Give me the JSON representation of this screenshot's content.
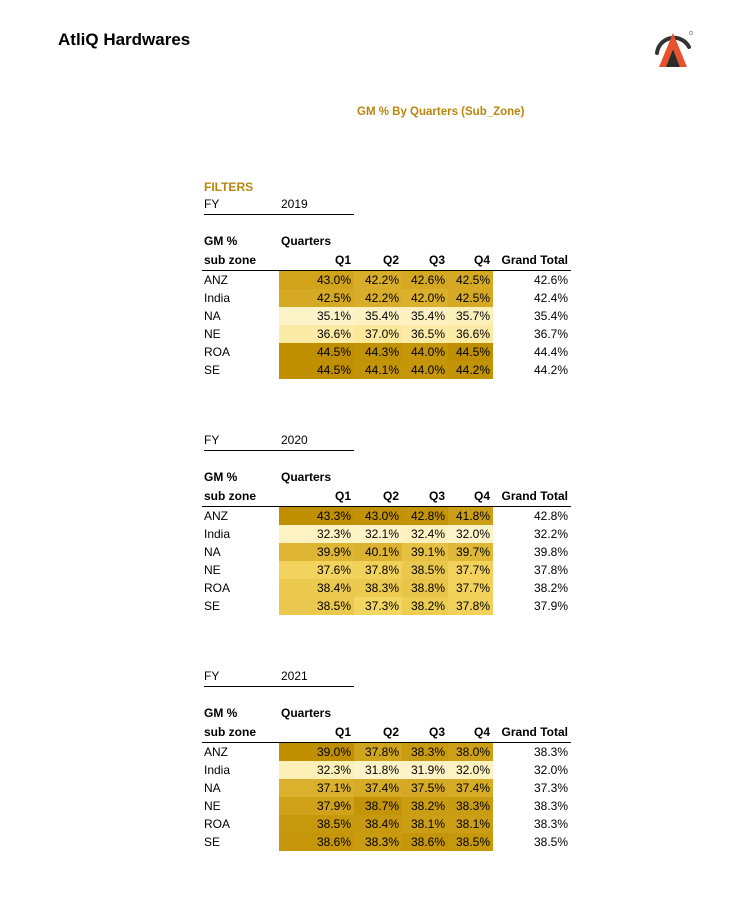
{
  "brand": "AtliQ Hardwares",
  "report_title": "GM % By Quarters (Sub_Zone)",
  "filters_label": "FILTERS",
  "colors": {
    "accent": "#b8860b",
    "heat_low": "#fdf3c8",
    "heat_high": "#bf8f00"
  },
  "icons": {
    "logo": "atliq-logo-icon"
  },
  "headers": {
    "gm": "GM %",
    "quarters": "Quarters",
    "sub_zone": "sub zone",
    "q1": "Q1",
    "q2": "Q2",
    "q3": "Q3",
    "q4": "Q4",
    "grand_total": "Grand Total",
    "fy": "FY"
  },
  "tables": [
    {
      "year": "2019",
      "rows": [
        {
          "name": "ANZ",
          "q": [
            "43.0%",
            "42.2%",
            "42.6%",
            "42.5%"
          ],
          "gt": "42.6%"
        },
        {
          "name": "India",
          "q": [
            "42.5%",
            "42.2%",
            "42.0%",
            "42.5%"
          ],
          "gt": "42.4%"
        },
        {
          "name": "NA",
          "q": [
            "35.1%",
            "35.4%",
            "35.4%",
            "35.7%"
          ],
          "gt": "35.4%"
        },
        {
          "name": "NE",
          "q": [
            "36.6%",
            "37.0%",
            "36.5%",
            "36.6%"
          ],
          "gt": "36.7%"
        },
        {
          "name": "ROA",
          "q": [
            "44.5%",
            "44.3%",
            "44.0%",
            "44.5%"
          ],
          "gt": "44.4%"
        },
        {
          "name": "SE",
          "q": [
            "44.5%",
            "44.1%",
            "44.0%",
            "44.2%"
          ],
          "gt": "44.2%"
        }
      ]
    },
    {
      "year": "2020",
      "rows": [
        {
          "name": "ANZ",
          "q": [
            "43.3%",
            "43.0%",
            "42.8%",
            "41.8%"
          ],
          "gt": "42.8%"
        },
        {
          "name": "India",
          "q": [
            "32.3%",
            "32.1%",
            "32.4%",
            "32.0%"
          ],
          "gt": "32.2%"
        },
        {
          "name": "NA",
          "q": [
            "39.9%",
            "40.1%",
            "39.1%",
            "39.7%"
          ],
          "gt": "39.8%"
        },
        {
          "name": "NE",
          "q": [
            "37.6%",
            "37.8%",
            "38.5%",
            "37.7%"
          ],
          "gt": "37.8%"
        },
        {
          "name": "ROA",
          "q": [
            "38.4%",
            "38.3%",
            "38.8%",
            "37.7%"
          ],
          "gt": "38.2%"
        },
        {
          "name": "SE",
          "q": [
            "38.5%",
            "37.3%",
            "38.2%",
            "37.8%"
          ],
          "gt": "37.9%"
        }
      ]
    },
    {
      "year": "2021",
      "rows": [
        {
          "name": "ANZ",
          "q": [
            "39.0%",
            "37.8%",
            "38.3%",
            "38.0%"
          ],
          "gt": "38.3%"
        },
        {
          "name": "India",
          "q": [
            "32.3%",
            "31.8%",
            "31.9%",
            "32.0%"
          ],
          "gt": "32.0%"
        },
        {
          "name": "NA",
          "q": [
            "37.1%",
            "37.4%",
            "37.5%",
            "37.4%"
          ],
          "gt": "37.3%"
        },
        {
          "name": "NE",
          "q": [
            "37.9%",
            "38.7%",
            "38.2%",
            "38.3%"
          ],
          "gt": "38.3%"
        },
        {
          "name": "ROA",
          "q": [
            "38.5%",
            "38.4%",
            "38.1%",
            "38.1%"
          ],
          "gt": "38.3%"
        },
        {
          "name": "SE",
          "q": [
            "38.6%",
            "38.3%",
            "38.6%",
            "38.5%"
          ],
          "gt": "38.5%"
        }
      ]
    }
  ]
}
